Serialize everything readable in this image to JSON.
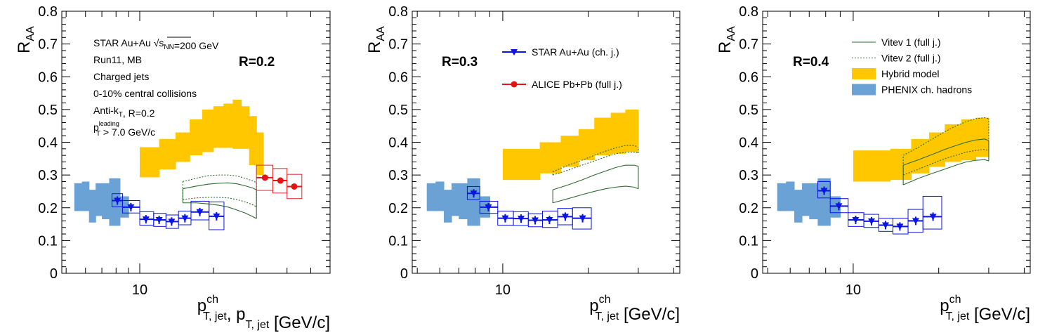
{
  "chart_data": [
    {
      "type": "scatter",
      "panel_label": "R=0.2",
      "ylabel": "R",
      "ylabel_sub": "AA",
      "xlabel_parts": [
        {
          "t": "p",
          "sup": "ch",
          "sub": "T, jet"
        },
        {
          "t": ", p",
          "sup": "",
          "sub": "T, jet"
        },
        {
          "t": " [GeV/c]",
          "sup": "",
          "sub": ""
        }
      ],
      "x_scale": "log",
      "xlim": [
        4.8,
        60
      ],
      "ylim": [
        0,
        0.8
      ],
      "yticks": [
        "0",
        "0.1",
        "0.2",
        "0.3",
        "0.4",
        "0.5",
        "0.6",
        "0.7",
        "0.8"
      ],
      "xticks": [
        "10"
      ],
      "info_text": [
        {
          "lines": [
            {
              "t": "STAR Au+Au "
            },
            {
              "t": "s",
              "sub": "NN",
              "sqrt": true
            },
            {
              "t": "=200 GeV"
            }
          ]
        },
        {
          "lines": [
            {
              "t": "Run11, MB"
            }
          ]
        },
        {
          "lines": [
            {
              "t": "Charged jets"
            }
          ]
        },
        {
          "lines": [
            {
              "t": "0-10% central collisions"
            }
          ]
        },
        {
          "lines": [
            {
              "t": "Anti-k"
            },
            {
              "t": "",
              "sub": "T"
            },
            {
              "t": ", R=0.2"
            }
          ]
        },
        {
          "lines": [
            {
              "t": "p"
            },
            {
              "t": "",
              "sub": "T",
              "sup": "leading"
            },
            {
              "t": " > 7.0 GeV/c"
            }
          ]
        }
      ],
      "phenix": [
        [
          5.4,
          5.8,
          0.19,
          0.275
        ],
        [
          5.8,
          6.2,
          0.19,
          0.28
        ],
        [
          6.2,
          6.6,
          0.155,
          0.255
        ],
        [
          6.6,
          7.0,
          0.175,
          0.275
        ],
        [
          7.0,
          7.5,
          0.165,
          0.275
        ],
        [
          7.5,
          8.3,
          0.145,
          0.29
        ],
        [
          8.3,
          9.0,
          0.17,
          0.235
        ]
      ],
      "star": [
        {
          "x": 8.1,
          "y": 0.222,
          "xlo": 7.7,
          "xhi": 8.5,
          "slo": 0.203,
          "shi": 0.243
        },
        {
          "x": 9.2,
          "y": 0.202,
          "xlo": 8.5,
          "xhi": 10.0,
          "slo": 0.184,
          "shi": 0.222
        },
        {
          "x": 10.6,
          "y": 0.165,
          "xlo": 10.0,
          "xhi": 11.4,
          "slo": 0.147,
          "shi": 0.188
        },
        {
          "x": 12.0,
          "y": 0.163,
          "xlo": 11.4,
          "xhi": 12.8,
          "slo": 0.143,
          "shi": 0.183
        },
        {
          "x": 13.5,
          "y": 0.158,
          "xlo": 12.8,
          "xhi": 14.4,
          "slo": 0.137,
          "shi": 0.178
        },
        {
          "x": 15.3,
          "y": 0.168,
          "xlo": 14.4,
          "xhi": 16.2,
          "slo": 0.148,
          "shi": 0.19
        },
        {
          "x": 17.6,
          "y": 0.187,
          "xlo": 16.2,
          "xhi": 19.2,
          "slo": 0.163,
          "shi": 0.22
        },
        {
          "x": 20.6,
          "y": 0.174,
          "xlo": 19.2,
          "xhi": 22.1,
          "slo": 0.133,
          "shi": 0.218
        }
      ],
      "alice": [
        {
          "x": 32.5,
          "y": 0.292,
          "xlo": 30.0,
          "xhi": 35.0,
          "slo": 0.253,
          "shi": 0.33
        },
        {
          "x": 37.6,
          "y": 0.283,
          "xlo": 35.0,
          "xhi": 40.0,
          "slo": 0.245,
          "shi": 0.32
        },
        {
          "x": 42.8,
          "y": 0.265,
          "xlo": 40.0,
          "xhi": 46.0,
          "slo": 0.228,
          "shi": 0.302
        }
      ],
      "hybrid": [
        [
          10.0,
          12.0,
          0.293,
          0.385
        ],
        [
          12.0,
          14.0,
          0.317,
          0.41
        ],
        [
          14.0,
          16.0,
          0.34,
          0.43
        ],
        [
          16.0,
          18.0,
          0.36,
          0.47
        ],
        [
          18.0,
          20.0,
          0.37,
          0.5
        ],
        [
          20.0,
          22.0,
          0.383,
          0.51
        ],
        [
          22.0,
          24.0,
          0.383,
          0.518
        ],
        [
          24.0,
          26.0,
          0.38,
          0.53
        ],
        [
          26.0,
          28.0,
          0.38,
          0.51
        ],
        [
          28.0,
          30.0,
          0.33,
          0.48
        ],
        [
          30.0,
          32.0,
          0.3,
          0.43
        ]
      ],
      "vitev1": {
        "x": [
          15,
          17,
          19,
          21,
          23,
          25,
          27,
          29,
          30
        ],
        "lo": [
          0.215,
          0.215,
          0.212,
          0.208,
          0.202,
          0.193,
          0.184,
          0.173,
          0.167
        ],
        "hi": [
          0.258,
          0.266,
          0.272,
          0.275,
          0.276,
          0.273,
          0.267,
          0.26,
          0.255
        ]
      },
      "vitev2": {
        "x": [
          15,
          17,
          19,
          21,
          23,
          25,
          27,
          29,
          30
        ],
        "lo": [
          0.225,
          0.23,
          0.232,
          0.232,
          0.23,
          0.225,
          0.218,
          0.209,
          0.203
        ],
        "hi": [
          0.28,
          0.29,
          0.298,
          0.3,
          0.3,
          0.297,
          0.29,
          0.282,
          0.277
        ]
      },
      "legend": []
    },
    {
      "type": "scatter",
      "panel_label": "R=0.3",
      "ylabel": "R",
      "ylabel_sub": "AA",
      "xlabel_parts": [
        {
          "t": "p",
          "sup": "ch",
          "sub": "T, jet"
        },
        {
          "t": " [GeV/c]",
          "sup": "",
          "sub": ""
        }
      ],
      "x_scale": "log",
      "xlim": [
        4.8,
        42
      ],
      "ylim": [
        0,
        0.8
      ],
      "yticks": [
        "0",
        "0.1",
        "0.2",
        "0.3",
        "0.4",
        "0.5",
        "0.6",
        "0.7",
        "0.8"
      ],
      "xticks": [
        "10"
      ],
      "info_text": [],
      "phenix": [
        [
          5.4,
          5.8,
          0.19,
          0.275
        ],
        [
          5.8,
          6.2,
          0.19,
          0.28
        ],
        [
          6.2,
          6.6,
          0.155,
          0.255
        ],
        [
          6.6,
          7.0,
          0.175,
          0.275
        ],
        [
          7.0,
          7.5,
          0.165,
          0.275
        ],
        [
          7.5,
          8.3,
          0.145,
          0.29
        ],
        [
          8.3,
          9.0,
          0.17,
          0.235
        ]
      ],
      "star": [
        {
          "x": 7.9,
          "y": 0.244,
          "xlo": 7.5,
          "xhi": 8.3,
          "slo": 0.225,
          "shi": 0.265
        },
        {
          "x": 8.9,
          "y": 0.202,
          "xlo": 8.3,
          "xhi": 9.6,
          "slo": 0.183,
          "shi": 0.22
        },
        {
          "x": 10.2,
          "y": 0.168,
          "xlo": 9.6,
          "xhi": 10.9,
          "slo": 0.147,
          "shi": 0.19
        },
        {
          "x": 11.6,
          "y": 0.167,
          "xlo": 10.9,
          "xhi": 12.3,
          "slo": 0.146,
          "shi": 0.188
        },
        {
          "x": 13.0,
          "y": 0.162,
          "xlo": 12.3,
          "xhi": 13.8,
          "slo": 0.142,
          "shi": 0.182
        },
        {
          "x": 14.6,
          "y": 0.163,
          "xlo": 13.8,
          "xhi": 15.6,
          "slo": 0.14,
          "shi": 0.19
        },
        {
          "x": 16.6,
          "y": 0.173,
          "xlo": 15.6,
          "xhi": 17.6,
          "slo": 0.148,
          "shi": 0.198
        },
        {
          "x": 19.1,
          "y": 0.168,
          "xlo": 17.6,
          "xhi": 20.5,
          "slo": 0.135,
          "shi": 0.2
        }
      ],
      "alice": [],
      "hybrid": [
        [
          10.0,
          13.5,
          0.285,
          0.38
        ],
        [
          13.5,
          16.0,
          0.305,
          0.4
        ],
        [
          16.0,
          18.5,
          0.325,
          0.42
        ],
        [
          18.5,
          21.0,
          0.345,
          0.44
        ],
        [
          21.0,
          24.0,
          0.36,
          0.475
        ],
        [
          24.0,
          27.0,
          0.365,
          0.49
        ],
        [
          27.0,
          30.0,
          0.37,
          0.5
        ]
      ],
      "vitev1": {
        "x": [
          15,
          17,
          19,
          21,
          23,
          25,
          27,
          29,
          30
        ],
        "lo": [
          0.215,
          0.228,
          0.24,
          0.25,
          0.258,
          0.263,
          0.266,
          0.263,
          0.258
        ],
        "hi": [
          0.255,
          0.27,
          0.285,
          0.3,
          0.312,
          0.323,
          0.33,
          0.33,
          0.327
        ]
      },
      "vitev2": {
        "x": [
          15,
          17,
          19,
          21,
          23,
          25,
          27,
          29,
          30
        ],
        "lo": [
          0.3,
          0.315,
          0.33,
          0.343,
          0.355,
          0.365,
          0.37,
          0.37,
          0.367
        ],
        "hi": [
          0.31,
          0.33,
          0.345,
          0.36,
          0.373,
          0.383,
          0.39,
          0.39,
          0.385
        ]
      },
      "legend": [
        {
          "label": "STAR Au+Au (ch. j.)",
          "kind": "star"
        },
        {
          "label": "ALICE Pb+Pb (full j.)",
          "kind": "alice"
        }
      ]
    },
    {
      "type": "scatter",
      "panel_label": "R=0.4",
      "ylabel": "R",
      "ylabel_sub": "AA",
      "xlabel_parts": [
        {
          "t": "p",
          "sup": "ch",
          "sub": "T, jet"
        },
        {
          "t": " [GeV/c]",
          "sup": "",
          "sub": ""
        }
      ],
      "x_scale": "log",
      "xlim": [
        4.8,
        42
      ],
      "ylim": [
        0,
        0.8
      ],
      "yticks": [
        "0",
        "0.1",
        "0.2",
        "0.3",
        "0.4",
        "0.5",
        "0.6",
        "0.7",
        "0.8"
      ],
      "xticks": [
        "10"
      ],
      "info_text": [],
      "phenix": [
        [
          5.4,
          5.8,
          0.19,
          0.275
        ],
        [
          5.8,
          6.2,
          0.19,
          0.28
        ],
        [
          6.2,
          6.6,
          0.155,
          0.255
        ],
        [
          6.6,
          7.0,
          0.175,
          0.275
        ],
        [
          7.0,
          7.5,
          0.165,
          0.275
        ],
        [
          7.5,
          8.3,
          0.145,
          0.29
        ],
        [
          8.3,
          9.0,
          0.17,
          0.235
        ]
      ],
      "star": [
        {
          "x": 7.9,
          "y": 0.252,
          "xlo": 7.5,
          "xhi": 8.3,
          "slo": 0.23,
          "shi": 0.28
        },
        {
          "x": 8.9,
          "y": 0.205,
          "xlo": 8.3,
          "xhi": 9.6,
          "slo": 0.185,
          "shi": 0.228
        },
        {
          "x": 10.2,
          "y": 0.163,
          "xlo": 9.6,
          "xhi": 10.9,
          "slo": 0.143,
          "shi": 0.185
        },
        {
          "x": 11.6,
          "y": 0.159,
          "xlo": 10.9,
          "xhi": 12.3,
          "slo": 0.14,
          "shi": 0.18
        },
        {
          "x": 13.0,
          "y": 0.147,
          "xlo": 12.3,
          "xhi": 13.8,
          "slo": 0.128,
          "shi": 0.168
        },
        {
          "x": 14.6,
          "y": 0.143,
          "xlo": 13.8,
          "xhi": 15.6,
          "slo": 0.12,
          "shi": 0.168
        },
        {
          "x": 16.6,
          "y": 0.16,
          "xlo": 15.6,
          "xhi": 17.6,
          "slo": 0.125,
          "shi": 0.195
        },
        {
          "x": 19.1,
          "y": 0.173,
          "xlo": 17.6,
          "xhi": 20.5,
          "slo": 0.135,
          "shi": 0.235
        }
      ],
      "alice": [],
      "hybrid": [
        [
          10.0,
          13.5,
          0.28,
          0.375
        ],
        [
          13.5,
          16.0,
          0.285,
          0.38
        ],
        [
          16.0,
          18.5,
          0.305,
          0.41
        ],
        [
          18.5,
          21.0,
          0.325,
          0.43
        ],
        [
          21.0,
          24.0,
          0.34,
          0.455
        ],
        [
          24.0,
          27.0,
          0.345,
          0.47
        ],
        [
          27.0,
          30.0,
          0.355,
          0.475
        ]
      ],
      "vitev1": {
        "x": [
          15,
          17,
          19,
          21,
          23,
          25,
          27,
          29,
          30
        ],
        "lo": [
          0.27,
          0.29,
          0.305,
          0.318,
          0.33,
          0.34,
          0.345,
          0.347,
          0.343
        ],
        "hi": [
          0.33,
          0.347,
          0.363,
          0.378,
          0.39,
          0.4,
          0.407,
          0.41,
          0.405
        ]
      },
      "vitev2": {
        "x": [
          15,
          17,
          19,
          21,
          23,
          25,
          27,
          29,
          30
        ],
        "lo": [
          0.3,
          0.318,
          0.335,
          0.35,
          0.36,
          0.37,
          0.375,
          0.378,
          0.375
        ],
        "hi": [
          0.36,
          0.385,
          0.41,
          0.432,
          0.45,
          0.463,
          0.472,
          0.475,
          0.472
        ]
      },
      "legend": [
        {
          "label": "Vitev 1 (full j.)",
          "kind": "vitev1"
        },
        {
          "label": "Vitev 2 (full j.)",
          "kind": "vitev2"
        },
        {
          "label": "Hybrid model",
          "kind": "hybrid"
        },
        {
          "label": "PHENIX ch. hadrons",
          "kind": "phenix"
        }
      ]
    }
  ],
  "colors": {
    "star": "#0a14e6",
    "alice": "#e01414",
    "alice_box": "#e02828",
    "hybrid": "#ffc700",
    "phenix": "#6aa2d6",
    "vitev": "#2e6b2e"
  }
}
